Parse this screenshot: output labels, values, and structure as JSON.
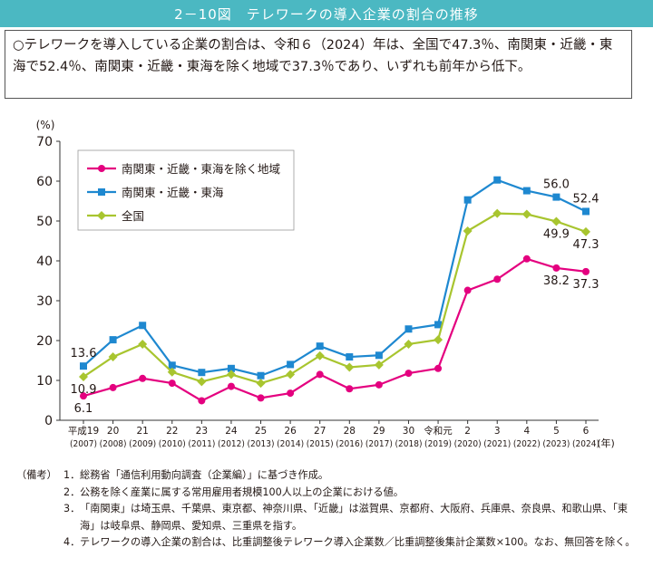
{
  "header": {
    "title": "2－10図　テレワークの導入企業の割合の推移"
  },
  "summary": {
    "text": "○テレワークを導入している企業の割合は、令和６（2024）年は、全国で47.3％、南関東・近畿・東海で52.4％、南関東・近畿・東海を除く地域で37.3％であり、いずれも前年から低下。"
  },
  "chart_data": {
    "type": "line",
    "ylabel": "(%)",
    "x_unit": "(年)",
    "ylim": [
      0,
      70
    ],
    "yticks": [
      0,
      10,
      20,
      30,
      40,
      50,
      60,
      70
    ],
    "grid": false,
    "legend_position": "top-left",
    "categories": [
      {
        "era": "平成19",
        "year": "(2007)"
      },
      {
        "era": "20",
        "year": "(2008)"
      },
      {
        "era": "21",
        "year": "(2009)"
      },
      {
        "era": "22",
        "year": "(2010)"
      },
      {
        "era": "23",
        "year": "(2011)"
      },
      {
        "era": "24",
        "year": "(2012)"
      },
      {
        "era": "25",
        "year": "(2013)"
      },
      {
        "era": "26",
        "year": "(2014)"
      },
      {
        "era": "27",
        "year": "(2015)"
      },
      {
        "era": "28",
        "year": "(2016)"
      },
      {
        "era": "29",
        "year": "(2017)"
      },
      {
        "era": "30",
        "year": "(2018)"
      },
      {
        "era": "令和元",
        "year": "(2019)"
      },
      {
        "era": "2",
        "year": "(2020)"
      },
      {
        "era": "3",
        "year": "(2021)"
      },
      {
        "era": "4",
        "year": "(2022)"
      },
      {
        "era": "5",
        "year": "(2023)"
      },
      {
        "era": "6",
        "year": "(2024)"
      }
    ],
    "series": [
      {
        "name": "南関東・近畿・東海を除く地域",
        "color": "#e4007f",
        "marker": "circle",
        "values": [
          6.1,
          8.2,
          10.5,
          9.3,
          4.9,
          8.5,
          5.6,
          6.8,
          11.5,
          7.9,
          8.9,
          11.8,
          13.0,
          32.6,
          35.4,
          40.5,
          38.2,
          37.3
        ],
        "labels": [
          {
            "i": 0,
            "text": "6.1",
            "pos": "below"
          },
          {
            "i": 16,
            "text": "38.2",
            "pos": "below"
          },
          {
            "i": 17,
            "text": "37.3",
            "pos": "below"
          }
        ]
      },
      {
        "name": "南関東・近畿・東海",
        "color": "#1e88d0",
        "marker": "square",
        "values": [
          13.6,
          20.2,
          23.8,
          13.8,
          12.0,
          13.0,
          11.2,
          14.0,
          18.6,
          15.9,
          16.3,
          22.9,
          24.0,
          55.3,
          60.3,
          57.6,
          56.0,
          52.4
        ],
        "labels": [
          {
            "i": 0,
            "text": "13.6",
            "pos": "above"
          },
          {
            "i": 16,
            "text": "56.0",
            "pos": "above"
          },
          {
            "i": 17,
            "text": "52.4",
            "pos": "above"
          }
        ]
      },
      {
        "name": "全国",
        "color": "#a8c52f",
        "marker": "diamond",
        "values": [
          10.9,
          15.9,
          19.1,
          12.1,
          9.7,
          11.5,
          9.3,
          11.5,
          16.2,
          13.3,
          13.9,
          19.1,
          20.2,
          47.5,
          51.9,
          51.7,
          49.9,
          47.3
        ],
        "labels": [
          {
            "i": 0,
            "text": "10.9",
            "pos": "below"
          },
          {
            "i": 16,
            "text": "49.9",
            "pos": "below"
          },
          {
            "i": 17,
            "text": "47.3",
            "pos": "below"
          }
        ]
      }
    ]
  },
  "notes": {
    "prefix": "（備考）",
    "items": [
      {
        "num": "1．",
        "text": "総務省「通信利用動向調査（企業編）」に基づき作成。"
      },
      {
        "num": "2．",
        "text": "公務を除く産業に属する常用雇用者規模100人以上の企業における値。"
      },
      {
        "num": "3．",
        "text": "「南関東」は埼玉県、千葉県、東京都、神奈川県、「近畿」は滋賀県、京都府、大阪府、兵庫県、奈良県、和歌山県、「東海」は岐阜県、静岡県、愛知県、三重県を指す。"
      },
      {
        "num": "4．",
        "text": "テレワークの導入企業の割合は、比重調整後テレワーク導入企業数／比重調整後集計企業数×100。なお、無回答を除く。"
      }
    ]
  }
}
